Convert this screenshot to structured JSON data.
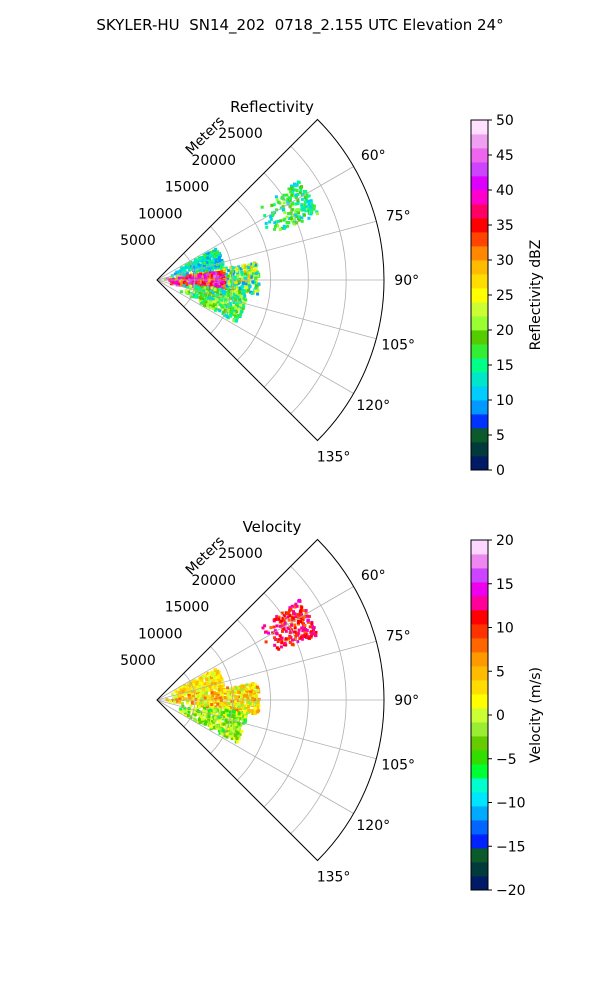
{
  "figure": {
    "title": "SKYLER-HU  SN14_202  0718_2.155 UTC Elevation 24°"
  },
  "chart_data": [
    {
      "type": "polar-sector",
      "title": "Reflectivity",
      "r_axis_label": "Meters",
      "r_ticks": [
        5000,
        10000,
        15000,
        20000,
        25000
      ],
      "r_tick_labels": [
        "5000",
        "10000",
        "15000",
        "20000",
        "25000"
      ],
      "rlim": [
        0,
        30000
      ],
      "theta_range_deg": [
        45,
        135
      ],
      "theta_ticks_deg": [
        60,
        75,
        90,
        105,
        120,
        135
      ],
      "theta_tick_labels": [
        "60°",
        "75°",
        "90°",
        "105°",
        "120°",
        "135°"
      ],
      "grid": true,
      "colorbar": {
        "label": "Reflectivity dBZ",
        "range": [
          0,
          50
        ],
        "ticks": [
          0,
          5,
          10,
          15,
          20,
          25,
          30,
          35,
          40,
          45,
          50
        ],
        "tick_labels": [
          "0",
          "5",
          "10",
          "15",
          "20",
          "25",
          "30",
          "35",
          "40",
          "45",
          "50"
        ],
        "colormap": [
          "#001a66",
          "#003a3a",
          "#0a5a2a",
          "#0033ff",
          "#0099ff",
          "#00ccff",
          "#00e6c8",
          "#00ff88",
          "#33ee33",
          "#55cc00",
          "#99ff33",
          "#ccff33",
          "#ffff00",
          "#ffdd00",
          "#ffbb00",
          "#ff8800",
          "#ff4400",
          "#ff0000",
          "#ff0066",
          "#ff00cc",
          "#dd00ff",
          "#cc44ff",
          "#ee66ee",
          "#f0a0f0",
          "#ffe0ff"
        ]
      },
      "data_regions": [
        {
          "label": "echo",
          "theta_deg": [
            55,
            68
          ],
          "r_m": [
            16000,
            23000
          ],
          "value_range": [
            10,
            22
          ]
        },
        {
          "label": "echo",
          "theta_deg": [
            62,
            80
          ],
          "r_m": [
            2000,
            9000
          ],
          "value_range": [
            8,
            18
          ]
        },
        {
          "label": "echo",
          "theta_deg": [
            80,
            98
          ],
          "r_m": [
            1000,
            13500
          ],
          "value_range": [
            8,
            30
          ]
        },
        {
          "label": "core",
          "theta_deg": [
            82,
            104
          ],
          "r_m": [
            1000,
            9000
          ],
          "value_range": [
            28,
            45
          ]
        },
        {
          "label": "echo",
          "theta_deg": [
            98,
            118
          ],
          "r_m": [
            3000,
            12000
          ],
          "value_range": [
            10,
            24
          ]
        }
      ]
    },
    {
      "type": "polar-sector",
      "title": "Velocity",
      "r_axis_label": "Meters",
      "r_ticks": [
        5000,
        10000,
        15000,
        20000,
        25000
      ],
      "r_tick_labels": [
        "5000",
        "10000",
        "15000",
        "20000",
        "25000"
      ],
      "rlim": [
        0,
        30000
      ],
      "theta_range_deg": [
        45,
        135
      ],
      "theta_ticks_deg": [
        60,
        75,
        90,
        105,
        120,
        135
      ],
      "theta_tick_labels": [
        "60°",
        "75°",
        "90°",
        "105°",
        "120°",
        "135°"
      ],
      "grid": true,
      "colorbar": {
        "label": "Velocity (m/s)",
        "range": [
          -20,
          20
        ],
        "ticks": [
          -20,
          -15,
          -10,
          -5,
          0,
          5,
          10,
          15,
          20
        ],
        "tick_labels": [
          "−20",
          "−15",
          "−10",
          "−5",
          "0",
          "5",
          "10",
          "15",
          "20"
        ],
        "colormap": [
          "#001a66",
          "#003a3a",
          "#0a5a2a",
          "#0022ff",
          "#0066ff",
          "#00aaff",
          "#00e6ff",
          "#00ffcc",
          "#00ff33",
          "#33dd00",
          "#66cc00",
          "#99ee33",
          "#ccff33",
          "#ffff00",
          "#ffdd00",
          "#ffbb00",
          "#ff9900",
          "#ff6600",
          "#ff3300",
          "#ff0000",
          "#ff0099",
          "#ee00ee",
          "#cc44ff",
          "#ee88ee",
          "#ffd6ff"
        ]
      },
      "data_regions": [
        {
          "label": "echo",
          "theta_deg": [
            55,
            68
          ],
          "r_m": [
            16000,
            23000
          ],
          "value_range": [
            8,
            14
          ]
        },
        {
          "label": "echo",
          "theta_deg": [
            62,
            80
          ],
          "r_m": [
            2000,
            9000
          ],
          "value_range": [
            0,
            6
          ]
        },
        {
          "label": "echo",
          "theta_deg": [
            80,
            98
          ],
          "r_m": [
            1000,
            13500
          ],
          "value_range": [
            -2,
            8
          ]
        },
        {
          "label": "echo",
          "theta_deg": [
            98,
            118
          ],
          "r_m": [
            3000,
            12000
          ],
          "value_range": [
            -6,
            2
          ]
        }
      ]
    }
  ]
}
